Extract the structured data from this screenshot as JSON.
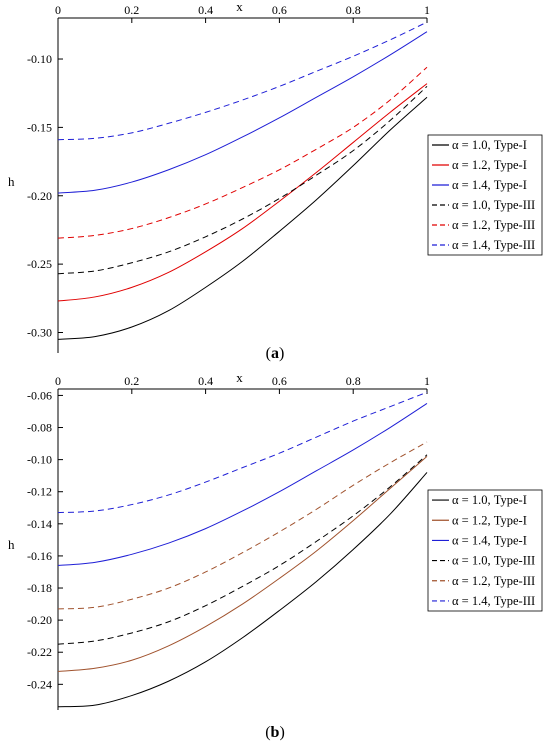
{
  "chart_data": [
    {
      "type": "line",
      "caption": "a",
      "xlabel": "x",
      "ylabel": "h",
      "xlim": [
        0,
        1
      ],
      "ylim": [
        -0.315,
        -0.07
      ],
      "xticks": [
        "0",
        "0.2",
        "0.4",
        "0.6",
        "0.8",
        "1"
      ],
      "xtick_values": [
        0,
        0.2,
        0.4,
        0.6,
        0.8,
        1
      ],
      "yticks": [
        "-0.10",
        "-0.15",
        "-0.20",
        "-0.25",
        "-0.30"
      ],
      "ytick_values": [
        -0.1,
        -0.15,
        -0.2,
        -0.25,
        -0.3
      ],
      "x_axis_position": "top",
      "grid": false,
      "legend_position": "right",
      "x": [
        0,
        0.1,
        0.2,
        0.3,
        0.4,
        0.5,
        0.6,
        0.7,
        0.8,
        0.9,
        1.0
      ],
      "series": [
        {
          "name": "α = 1.0, Type-I",
          "color": "#000000",
          "dash": "solid",
          "values": [
            -0.305,
            -0.303,
            -0.296,
            -0.284,
            -0.267,
            -0.248,
            -0.226,
            -0.203,
            -0.178,
            -0.152,
            -0.128
          ]
        },
        {
          "name": "α = 1.2, Type-I",
          "color": "#e00000",
          "dash": "solid",
          "values": [
            -0.277,
            -0.274,
            -0.267,
            -0.256,
            -0.241,
            -0.224,
            -0.204,
            -0.183,
            -0.161,
            -0.139,
            -0.118
          ]
        },
        {
          "name": "α = 1.4, Type-I",
          "color": "#1f1fd6",
          "dash": "solid",
          "values": [
            -0.198,
            -0.196,
            -0.19,
            -0.181,
            -0.17,
            -0.157,
            -0.143,
            -0.128,
            -0.113,
            -0.097,
            -0.08
          ]
        },
        {
          "name": "α = 1.0, Type-III",
          "color": "#000000",
          "dash": "dashed",
          "values": [
            -0.257,
            -0.255,
            -0.249,
            -0.241,
            -0.23,
            -0.217,
            -0.202,
            -0.185,
            -0.167,
            -0.145,
            -0.12
          ]
        },
        {
          "name": "α = 1.2, Type-III",
          "color": "#e00000",
          "dash": "dashed",
          "values": [
            -0.231,
            -0.229,
            -0.224,
            -0.216,
            -0.206,
            -0.194,
            -0.181,
            -0.166,
            -0.15,
            -0.13,
            -0.106
          ]
        },
        {
          "name": "α = 1.4, Type-III",
          "color": "#1f1fd6",
          "dash": "dashed",
          "values": [
            -0.159,
            -0.158,
            -0.154,
            -0.147,
            -0.139,
            -0.13,
            -0.12,
            -0.109,
            -0.098,
            -0.086,
            -0.073
          ]
        }
      ]
    },
    {
      "type": "line",
      "caption": "b",
      "xlabel": "x",
      "ylabel": "h",
      "xlim": [
        0,
        1
      ],
      "ylim": [
        -0.256,
        -0.056
      ],
      "xticks": [
        "0",
        "0.2",
        "0.4",
        "0.6",
        "0.8",
        "1"
      ],
      "xtick_values": [
        0,
        0.2,
        0.4,
        0.6,
        0.8,
        1
      ],
      "yticks": [
        "-0.06",
        "-0.08",
        "-0.10",
        "-0.12",
        "-0.14",
        "-0.16",
        "-0.18",
        "-0.20",
        "-0.22",
        "-0.24"
      ],
      "ytick_values": [
        -0.06,
        -0.08,
        -0.1,
        -0.12,
        -0.14,
        -0.16,
        -0.18,
        -0.2,
        -0.22,
        -0.24
      ],
      "x_axis_position": "top",
      "grid": false,
      "legend_position": "right",
      "x": [
        0,
        0.1,
        0.2,
        0.3,
        0.4,
        0.5,
        0.6,
        0.7,
        0.8,
        0.9,
        1.0
      ],
      "series": [
        {
          "name": "α = 1.0, Type-I",
          "color": "#000000",
          "dash": "solid",
          "values": [
            -0.254,
            -0.253,
            -0.247,
            -0.238,
            -0.226,
            -0.211,
            -0.194,
            -0.176,
            -0.156,
            -0.134,
            -0.108
          ]
        },
        {
          "name": "α = 1.2, Type-I",
          "color": "#a0522d",
          "dash": "solid",
          "values": [
            -0.232,
            -0.23,
            -0.225,
            -0.216,
            -0.204,
            -0.19,
            -0.174,
            -0.157,
            -0.138,
            -0.118,
            -0.098
          ]
        },
        {
          "name": "α = 1.4, Type-I",
          "color": "#1f1fd6",
          "dash": "solid",
          "values": [
            -0.166,
            -0.164,
            -0.159,
            -0.152,
            -0.143,
            -0.132,
            -0.12,
            -0.107,
            -0.094,
            -0.08,
            -0.065
          ]
        },
        {
          "name": "α = 1.0, Type-III",
          "color": "#000000",
          "dash": "dashed",
          "values": [
            -0.215,
            -0.213,
            -0.208,
            -0.201,
            -0.191,
            -0.179,
            -0.166,
            -0.151,
            -0.135,
            -0.117,
            -0.097
          ]
        },
        {
          "name": "α = 1.2, Type-III",
          "color": "#a0522d",
          "dash": "dashed",
          "values": [
            -0.193,
            -0.192,
            -0.187,
            -0.18,
            -0.17,
            -0.158,
            -0.145,
            -0.131,
            -0.116,
            -0.102,
            -0.089
          ]
        },
        {
          "name": "α = 1.4, Type-III",
          "color": "#1f1fd6",
          "dash": "dashed",
          "values": [
            -0.133,
            -0.132,
            -0.128,
            -0.122,
            -0.114,
            -0.105,
            -0.096,
            -0.086,
            -0.076,
            -0.067,
            -0.058
          ]
        }
      ]
    }
  ]
}
